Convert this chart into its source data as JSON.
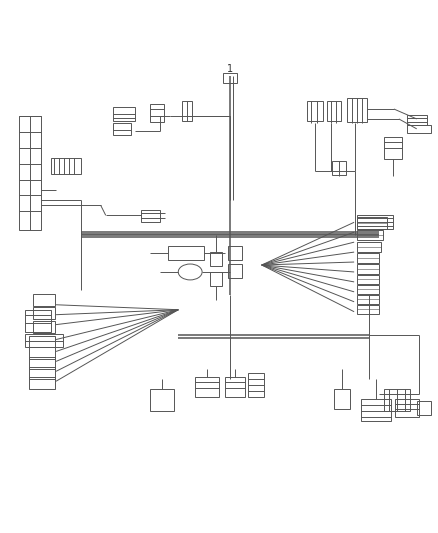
{
  "background_color": "#ffffff",
  "line_color": "#555555",
  "lw": 0.7,
  "lw_thick": 1.1,
  "fig_width": 4.38,
  "fig_height": 5.33
}
